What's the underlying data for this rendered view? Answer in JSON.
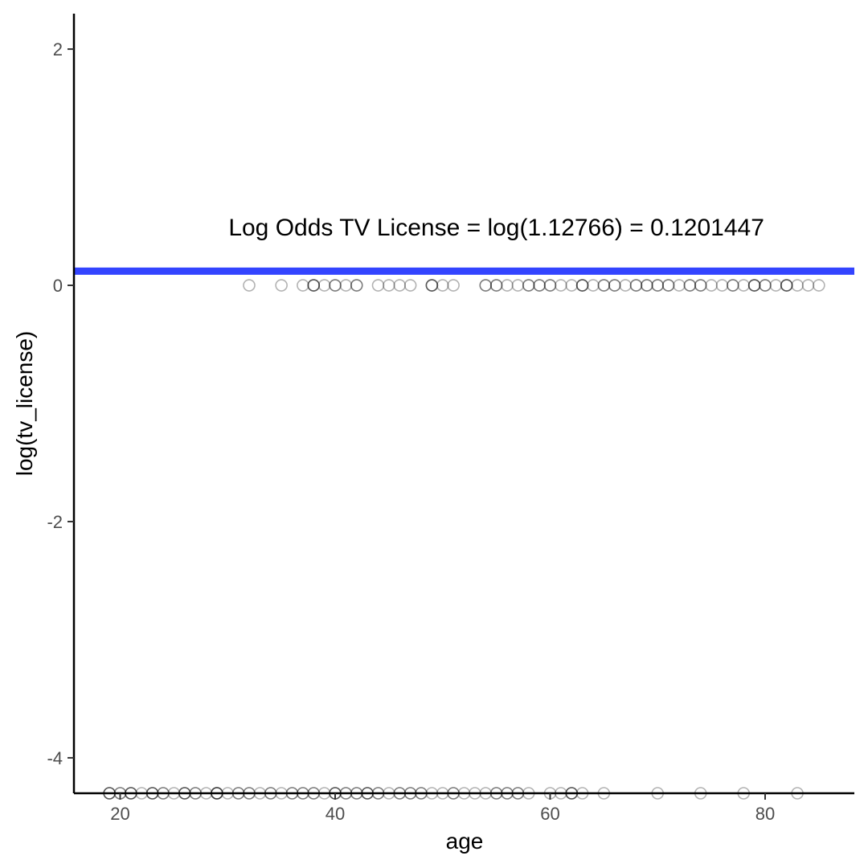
{
  "chart_data": {
    "type": "scatter",
    "title": "",
    "xlabel": "age",
    "ylabel": "log(tv_license)",
    "xlim": [
      15.7,
      88.3
    ],
    "ylim": [
      -4.3,
      2.3
    ],
    "x_ticks": [
      20,
      40,
      60,
      80
    ],
    "y_ticks": [
      -4,
      -2,
      0,
      2
    ],
    "grid": false,
    "point_color": "#000000",
    "point_alpha": 0.3,
    "line_color": "#3344ff",
    "annotation": {
      "text": "Log Odds TV License = log(1.12766) = 0.1201447",
      "x": 55,
      "y": 0.49
    },
    "hline": {
      "y": 0.1201447
    },
    "series": [
      {
        "y": 0,
        "x": [
          32,
          35,
          37,
          38,
          38,
          38,
          39,
          40,
          40,
          41,
          42,
          42,
          44,
          45,
          46,
          47,
          49,
          49,
          49,
          50,
          51,
          54,
          54,
          55,
          55,
          56,
          57,
          58,
          58,
          59,
          59,
          60,
          60,
          61,
          62,
          63,
          63,
          63,
          64,
          65,
          65,
          66,
          66,
          67,
          68,
          68,
          69,
          69,
          70,
          70,
          71,
          71,
          72,
          73,
          73,
          74,
          74,
          75,
          76,
          77,
          77,
          78,
          79,
          79,
          79,
          80,
          80,
          81,
          82,
          82,
          82,
          83,
          84,
          85
        ]
      },
      {
        "y": -4.3,
        "x": [
          19,
          19,
          19,
          20,
          20,
          21,
          21,
          21,
          22,
          23,
          23,
          23,
          24,
          24,
          25,
          26,
          26,
          26,
          27,
          27,
          28,
          29,
          29,
          29,
          29,
          30,
          31,
          31,
          32,
          32,
          33,
          34,
          34,
          35,
          36,
          36,
          37,
          37,
          38,
          38,
          39,
          40,
          40,
          40,
          41,
          41,
          42,
          42,
          43,
          43,
          43,
          44,
          44,
          45,
          46,
          46,
          47,
          47,
          48,
          48,
          49,
          50,
          51,
          51,
          52,
          53,
          54,
          55,
          55,
          56,
          56,
          57,
          57,
          58,
          60,
          61,
          62,
          62,
          62,
          63,
          65,
          70,
          74,
          78,
          83
        ]
      }
    ]
  }
}
